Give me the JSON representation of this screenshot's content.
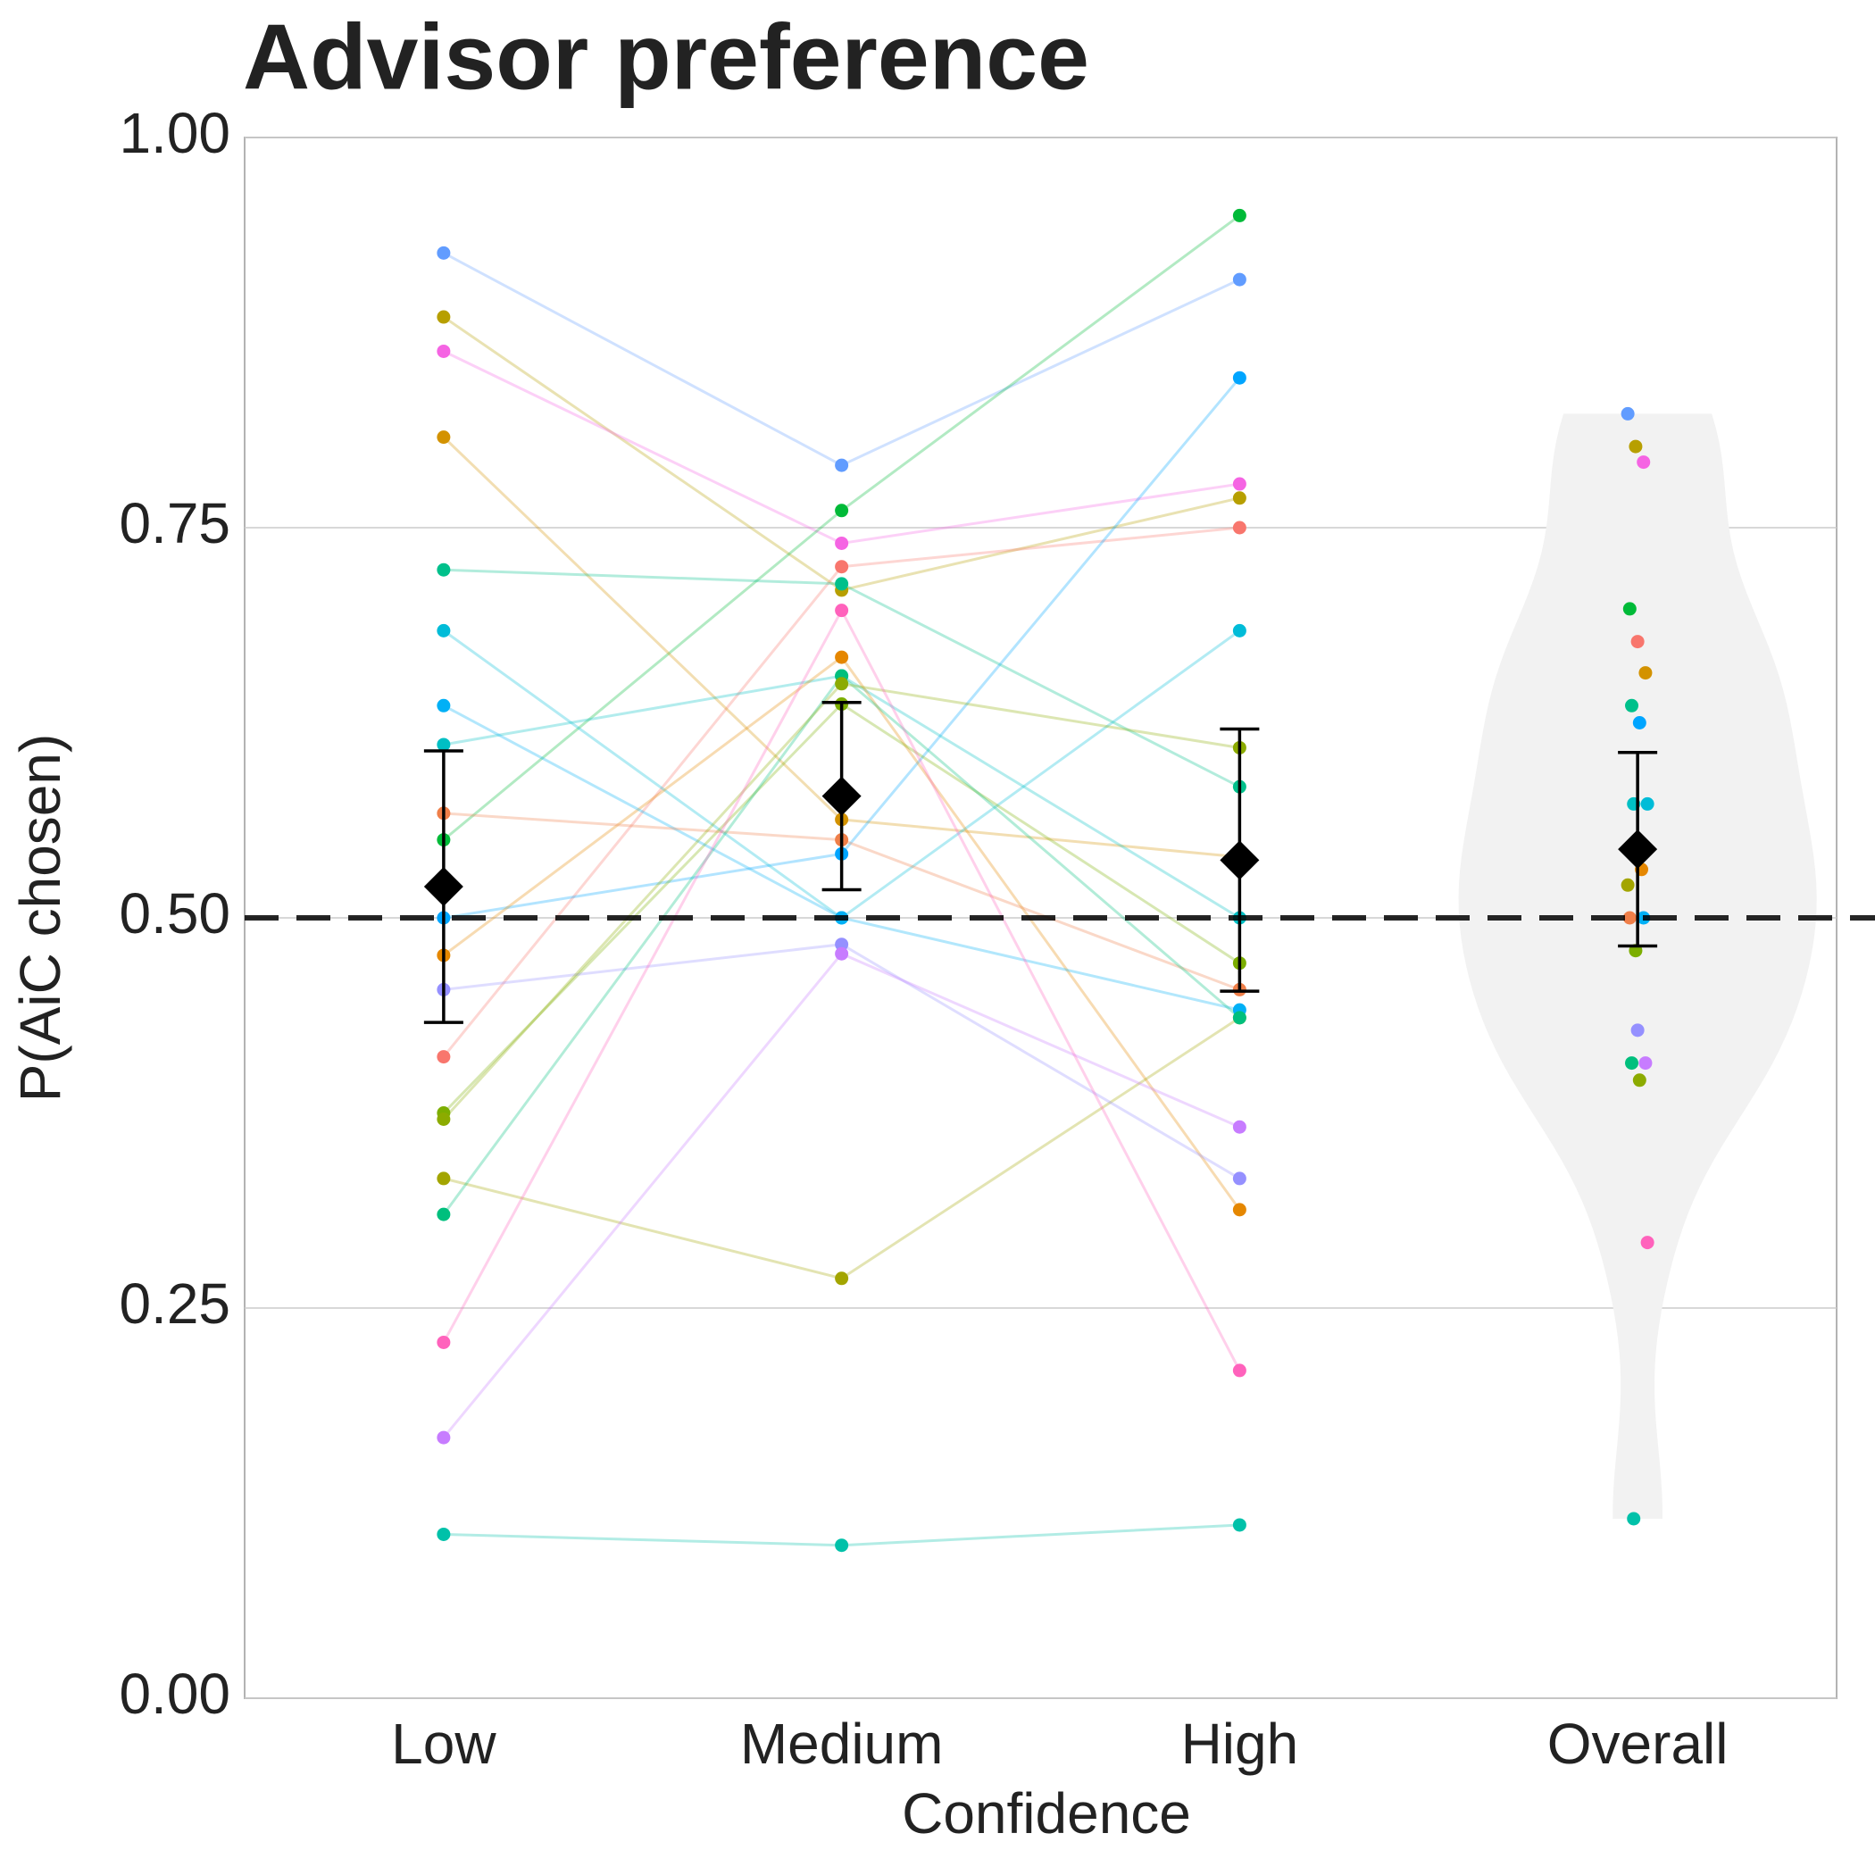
{
  "chart_data": {
    "type": "paired-dot",
    "title": "Advisor preference",
    "x_label": "Confidence",
    "y_label": "P(AiC chosen)",
    "categories": [
      "Low",
      "Medium",
      "High",
      "Overall"
    ],
    "ylim": [
      0,
      1
    ],
    "yticks": [
      {
        "value": 0,
        "label": "0.00"
      },
      {
        "value": 0.25,
        "label": "0.25"
      },
      {
        "value": 0.5,
        "label": "0.50"
      },
      {
        "value": 0.75,
        "label": "0.75"
      },
      {
        "value": 1,
        "label": "1.00"
      }
    ],
    "grid": true,
    "reference_line": 0.5,
    "violin_color": "#f2f2f2",
    "series": [
      {
        "color": "#619CFF",
        "values": [
          0.926,
          0.79,
          0.909,
          0.823
        ]
      },
      {
        "color": "#B79F00",
        "values": [
          0.885,
          0.71,
          0.769,
          0.802
        ]
      },
      {
        "color": "#F564E3",
        "values": [
          0.863,
          0.74,
          0.778,
          0.792
        ]
      },
      {
        "color": "#00BA38",
        "values": [
          0.55,
          0.761,
          0.95,
          0.698
        ]
      },
      {
        "color": "#F8766D",
        "values": [
          0.411,
          0.725,
          0.75,
          0.677
        ]
      },
      {
        "color": "#D39200",
        "values": [
          0.808,
          0.563,
          0.539,
          0.657
        ]
      },
      {
        "color": "#00C08B",
        "values": [
          0.723,
          0.714,
          0.584,
          0.636
        ]
      },
      {
        "color": "#00A5FF",
        "values": [
          0.5,
          0.541,
          0.846,
          0.625
        ]
      },
      {
        "color": "#00BCD8",
        "values": [
          0.684,
          0.5,
          0.684,
          0.573
        ]
      },
      {
        "color": "#00BFC4",
        "values": [
          0.611,
          0.655,
          0.5,
          0.573
        ]
      },
      {
        "color": "#E58700",
        "values": [
          0.476,
          0.667,
          0.313,
          0.531
        ]
      },
      {
        "color": "#A3A500",
        "values": [
          0.333,
          0.269,
          0.436,
          0.521
        ]
      },
      {
        "color": "#7CAE00",
        "values": [
          0.375,
          0.637,
          0.471,
          0.479
        ]
      },
      {
        "color": "#00B0F6",
        "values": [
          0.636,
          0.5,
          0.441,
          0.5
        ]
      },
      {
        "color": "#EF7F49",
        "values": [
          0.567,
          0.55,
          0.454,
          0.5
        ]
      },
      {
        "color": "#9590FF",
        "values": [
          0.454,
          0.483,
          0.333,
          0.428
        ]
      },
      {
        "color": "#C77CFF",
        "values": [
          0.167,
          0.477,
          0.366,
          0.407
        ]
      },
      {
        "color": "#00BF7D",
        "values": [
          0.31,
          0.655,
          0.436,
          0.407
        ]
      },
      {
        "color": "#8CAB00",
        "values": [
          0.371,
          0.65,
          0.609,
          0.396
        ]
      },
      {
        "color": "#FF62BC",
        "values": [
          0.228,
          0.697,
          0.21,
          0.292
        ]
      },
      {
        "color": "#00C1A9",
        "values": [
          0.105,
          0.098,
          0.111,
          0.115
        ]
      }
    ],
    "mean": {
      "values": [
        0.52,
        0.578,
        0.537,
        0.544
      ],
      "errors": [
        0.087,
        0.06,
        0.084,
        0.062
      ]
    }
  }
}
